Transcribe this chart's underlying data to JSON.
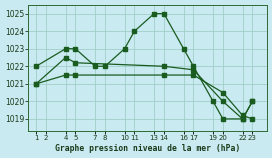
{
  "title": "Graphe pression niveau de la mer (hPa)",
  "bg_color": "#c8eaf0",
  "grid_color": "#a0cfc8",
  "line_color": "#1a5c20",
  "x_tick_positions": [
    1,
    2,
    4,
    5,
    7,
    8,
    10,
    11,
    13,
    14,
    16,
    17,
    19,
    20,
    22,
    23
  ],
  "x_ticks_labels": [
    "1",
    "2",
    "4",
    "5",
    "7",
    "8",
    "10",
    "11",
    "13",
    "14",
    "16",
    "17",
    "19",
    "20",
    "22",
    "23"
  ],
  "ylim": [
    1018.3,
    1025.5
  ],
  "xlim": [
    0.2,
    24.5
  ],
  "yticks": [
    1019,
    1020,
    1021,
    1022,
    1023,
    1024,
    1025
  ],
  "line1_x": [
    1,
    4,
    5,
    7,
    8,
    10,
    11,
    13,
    14,
    16,
    17,
    19,
    20,
    22,
    23
  ],
  "line1_y": [
    1022,
    1023,
    1023,
    1022,
    1022,
    1023,
    1024,
    1025,
    1025,
    1023,
    1022,
    1020,
    1019,
    1019,
    1020
  ],
  "line2_x": [
    1,
    4,
    5,
    14,
    17,
    20,
    22,
    23
  ],
  "line2_y": [
    1021.0,
    1021.5,
    1021.5,
    1021.5,
    1021.5,
    1020.5,
    1019.2,
    1019.0
  ],
  "line3_x": [
    1,
    4,
    5,
    14,
    17,
    20,
    22,
    23
  ],
  "line3_y": [
    1021.0,
    1022.5,
    1022.2,
    1022.0,
    1021.8,
    1020.0,
    1019.0,
    1020.0
  ]
}
